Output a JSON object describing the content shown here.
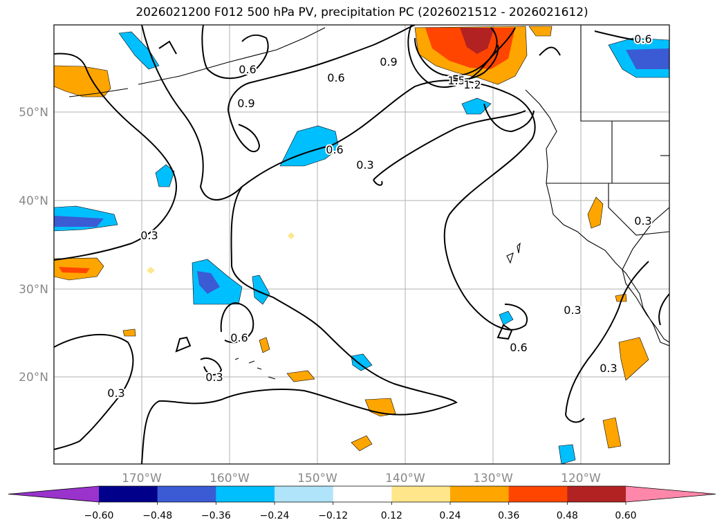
{
  "title": "2026021200 F012 500 hPa PV, precipitation PC (2026021512 - 2026021612)",
  "map": {
    "lat_ticks": [
      "50°N",
      "40°N",
      "30°N",
      "20°N"
    ],
    "lon_ticks": [
      "170°W",
      "160°W",
      "150°W",
      "140°W",
      "130°W",
      "120°W"
    ],
    "contour_labels": [
      "0.6",
      "0.6",
      "0.9",
      "0.6",
      "0.9",
      "1.5",
      "1.2",
      "0.6",
      "0.3",
      "0.3",
      "0.6",
      "0.3",
      "0.6",
      "0.3",
      "0.3",
      "0.3",
      "0.3"
    ]
  },
  "colorbar": {
    "ticks": [
      "−0.60",
      "−0.48",
      "−0.36",
      "−0.24",
      "−0.12",
      "0.12",
      "0.24",
      "0.36",
      "0.48",
      "0.60"
    ],
    "colors": [
      "#9933cc",
      "#00008b",
      "#3a5bd4",
      "#00bfff",
      "#b0e4fa",
      "#ffffff",
      "#ffe68a",
      "#ffa500",
      "#ff4500",
      "#b22222",
      "#ff88aa"
    ]
  }
}
